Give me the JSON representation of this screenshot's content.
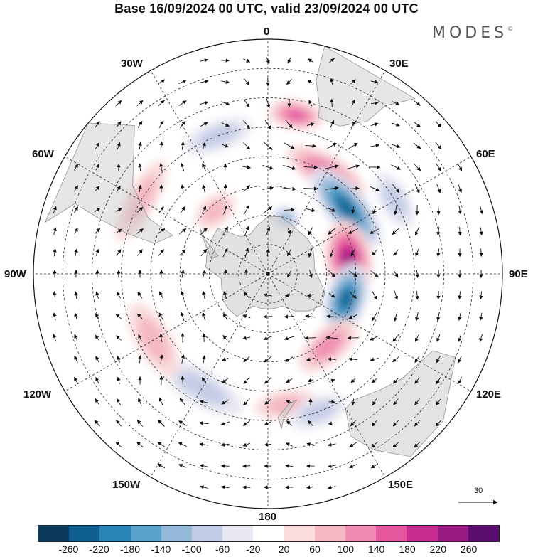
{
  "title": "Base 16/09/2024 00 UTC, valid 23/09/2024 00 UTC",
  "brand": "MODES",
  "brand_mark": "©",
  "longitude_labels": {
    "lon_0": "0",
    "lon_30e": "30E",
    "lon_60e": "60E",
    "lon_90e": "90E",
    "lon_120e": "120E",
    "lon_150e": "150E",
    "lon_180": "180",
    "lon_150w": "150W",
    "lon_120w": "120W",
    "lon_90w": "90W",
    "lon_60w": "60W",
    "lon_30w": "30W"
  },
  "reference_vector": {
    "label": "30"
  },
  "colorbar": {
    "colors": [
      "#0b3a5c",
      "#10608f",
      "#2a86b8",
      "#5aa2cb",
      "#93b8d8",
      "#c4cde6",
      "#e7e7f2",
      "#ffffff",
      "#f9dcdc",
      "#f4b8c3",
      "#f08cb2",
      "#e6579e",
      "#c92a8e",
      "#9b1a83",
      "#5b0e6f"
    ],
    "ticks": [
      "-260",
      "-220",
      "-180",
      "-140",
      "-100",
      "-60",
      "-20",
      "20",
      "60",
      "100",
      "140",
      "180",
      "220",
      "260"
    ]
  },
  "anomaly_lobes": [
    {
      "lat": -70,
      "lon": 18,
      "value": -120,
      "rx": 14,
      "ry": 4
    },
    {
      "lat": -50,
      "lon": 30,
      "value": 140,
      "rx": 22,
      "ry": 6
    },
    {
      "lat": -55,
      "lon": 50,
      "value": -220,
      "rx": 28,
      "ry": 7
    },
    {
      "lat": -62,
      "lon": 80,
      "value": 220,
      "rx": 28,
      "ry": 8
    },
    {
      "lat": -62,
      "lon": 108,
      "value": -240,
      "rx": 26,
      "ry": 7
    },
    {
      "lat": -58,
      "lon": 140,
      "value": 120,
      "rx": 22,
      "ry": 6
    },
    {
      "lat": -45,
      "lon": 172,
      "value": 80,
      "rx": 14,
      "ry": 5
    },
    {
      "lat": -40,
      "lon": 160,
      "value": -70,
      "rx": 12,
      "ry": 5
    },
    {
      "lat": -45,
      "lon": -150,
      "value": -80,
      "rx": 20,
      "ry": 6
    },
    {
      "lat": -45,
      "lon": -120,
      "value": 60,
      "rx": 18,
      "ry": 6
    },
    {
      "lat": -40,
      "lon": -60,
      "value": 60,
      "rx": 18,
      "ry": 5
    },
    {
      "lat": -62,
      "lon": -40,
      "value": 70,
      "rx": 16,
      "ry": 5
    },
    {
      "lat": -40,
      "lon": -20,
      "value": -60,
      "rx": 14,
      "ry": 5
    },
    {
      "lat": -35,
      "lon": 10,
      "value": 140,
      "rx": 10,
      "ry": 5
    },
    {
      "lat": -40,
      "lon": 60,
      "value": -60,
      "rx": 12,
      "ry": 5
    }
  ]
}
